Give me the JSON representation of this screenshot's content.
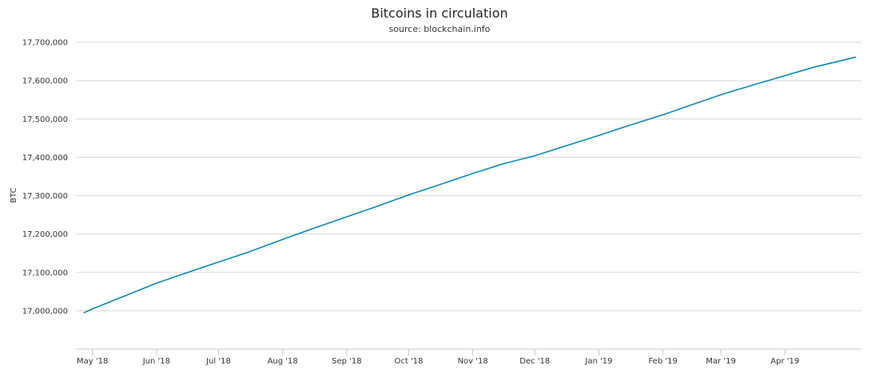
{
  "chart_data": {
    "type": "line",
    "title": "Bitcoins in circulation",
    "subtitle": "source: blockchain.info",
    "ylabel": "BTC",
    "xlabel": "",
    "ylim": [
      16900000,
      17700000
    ],
    "yticks": [
      17000000,
      17100000,
      17200000,
      17300000,
      17400000,
      17500000,
      17600000,
      17700000
    ],
    "ytick_labels": [
      "17,000,000",
      "17,100,000",
      "17,200,000",
      "17,300,000",
      "17,400,000",
      "17,500,000",
      "17,600,000",
      "17,700,000"
    ],
    "xlim": [
      "2018-04-23",
      "2019-05-08"
    ],
    "xticks": [
      "2018-05-01",
      "2018-06-01",
      "2018-07-01",
      "2018-08-01",
      "2018-09-01",
      "2018-10-01",
      "2018-11-01",
      "2018-12-01",
      "2019-01-01",
      "2019-02-01",
      "2019-03-01",
      "2019-04-01"
    ],
    "xtick_labels": [
      "May '18",
      "Jun '18",
      "Jul '18",
      "Aug '18",
      "Sep '18",
      "Oct '18",
      "Nov '18",
      "Dec '18",
      "Jan '19",
      "Feb '19",
      "Mar '19",
      "Apr '19"
    ],
    "grid": true,
    "legend": "none",
    "series": [
      {
        "color": "#0a88b5",
        "x": [
          "2018-04-27",
          "2018-05-01",
          "2018-05-15",
          "2018-06-01",
          "2018-06-15",
          "2018-07-01",
          "2018-07-15",
          "2018-08-01",
          "2018-08-15",
          "2018-09-01",
          "2018-09-15",
          "2018-10-01",
          "2018-10-15",
          "2018-11-01",
          "2018-11-15",
          "2018-12-01",
          "2018-12-15",
          "2019-01-01",
          "2019-01-15",
          "2019-02-01",
          "2019-02-15",
          "2019-03-01",
          "2019-03-15",
          "2019-04-01",
          "2019-04-15",
          "2019-05-05"
        ],
        "y": [
          16995000,
          17005000,
          17035000,
          17072000,
          17098000,
          17127000,
          17152000,
          17186000,
          17213000,
          17245000,
          17271000,
          17302000,
          17327000,
          17358000,
          17382000,
          17404000,
          17428000,
          17457000,
          17482000,
          17511000,
          17537000,
          17563000,
          17586000,
          17613000,
          17635000,
          17661000
        ]
      }
    ]
  }
}
